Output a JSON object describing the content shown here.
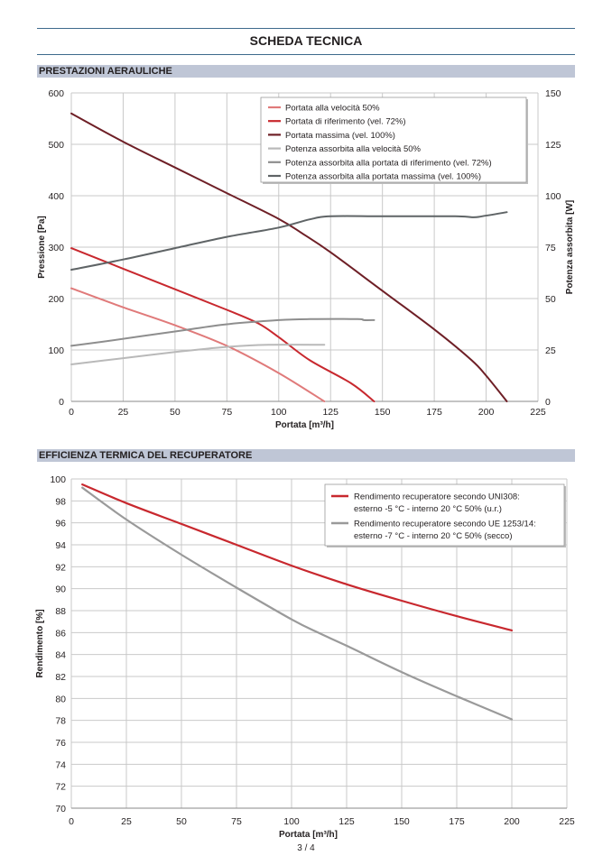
{
  "header": {
    "title": "SCHEDA TECNICA"
  },
  "sections": [
    {
      "title": "PRESTAZIONI AERAULICHE"
    },
    {
      "title": "EFFICIENZA TERMICA DEL RECUPERATORE"
    }
  ],
  "footer": {
    "page": "3 / 4"
  },
  "chart_data": [
    {
      "type": "line",
      "title": "PRESTAZIONI AERAULICHE",
      "xlabel": "Portata [m³/h]",
      "ylabel": "Pressione [Pa]",
      "y2label": "Potenza assorbita [W]",
      "xlim": [
        0,
        225
      ],
      "ylim": [
        0,
        600
      ],
      "y2lim": [
        0,
        150
      ],
      "xticks": [
        "0",
        "25",
        "50",
        "75",
        "100",
        "125",
        "150",
        "175",
        "200",
        "225"
      ],
      "yticks": [
        "0",
        "100",
        "200",
        "300",
        "400",
        "500",
        "600"
      ],
      "y2ticks": [
        "0",
        "25",
        "50",
        "75",
        "100",
        "125",
        "150"
      ],
      "grid": true,
      "legend_position": "top-right",
      "series": [
        {
          "name": "Portata alla velocità 50%",
          "axis": "left",
          "color": "#e07a7a",
          "x": [
            0,
            25,
            50,
            75,
            100,
            122
          ],
          "y": [
            220,
            183,
            148,
            108,
            55,
            0
          ]
        },
        {
          "name": "Portata di riferimento (vel. 72%)",
          "axis": "left",
          "color": "#c8282e",
          "x": [
            0,
            25,
            50,
            75,
            90,
            100,
            115,
            135,
            146
          ],
          "y": [
            298,
            258,
            218,
            178,
            152,
            125,
            80,
            35,
            0
          ]
        },
        {
          "name": "Portata massima (vel. 100%)",
          "axis": "left",
          "color": "#6e1f26",
          "x": [
            0,
            25,
            50,
            75,
            100,
            112,
            125,
            150,
            175,
            193,
            200,
            210
          ],
          "y": [
            560,
            505,
            455,
            405,
            355,
            325,
            290,
            215,
            140,
            80,
            50,
            0
          ]
        },
        {
          "name": "Potenza assorbita alla velocità 50%",
          "axis": "right",
          "color": "#b9b9b9",
          "x": [
            0,
            25,
            50,
            75,
            95,
            122
          ],
          "y": [
            18,
            21,
            24,
            26.5,
            27.5,
            27.5
          ]
        },
        {
          "name": "Potenza assorbita alla portata di riferimento (vel. 72%)",
          "axis": "right",
          "color": "#8e8e8e",
          "x": [
            0,
            15,
            50,
            75,
            100,
            115,
            138,
            141,
            146
          ],
          "y": [
            27,
            29,
            34,
            37.5,
            39.5,
            40,
            40,
            39.5,
            39.5
          ]
        },
        {
          "name": "Potenza assorbita alla portata massima (vel. 100%)",
          "axis": "right",
          "color": "#5f6466",
          "x": [
            0,
            25,
            50,
            75,
            100,
            115,
            125,
            150,
            185,
            194,
            198,
            210
          ],
          "y": [
            64,
            69,
            74.5,
            80,
            84.5,
            88.5,
            90,
            90,
            90,
            89.5,
            90,
            92
          ]
        }
      ]
    },
    {
      "type": "line",
      "title": "EFFICIENZA TERMICA DEL RECUPERATORE",
      "xlabel": "Portata [m³/h]",
      "ylabel": "Rendimento [%]",
      "xlim": [
        0,
        225
      ],
      "ylim": [
        70,
        100
      ],
      "xticks": [
        "0",
        "25",
        "50",
        "75",
        "100",
        "125",
        "150",
        "175",
        "200",
        "225"
      ],
      "yticks": [
        "70",
        "72",
        "74",
        "76",
        "78",
        "80",
        "82",
        "84",
        "86",
        "88",
        "90",
        "92",
        "94",
        "96",
        "98",
        "100"
      ],
      "grid": true,
      "legend_position": "top-right",
      "series": [
        {
          "name": "Rendimento recuperatore secondo UNI308:",
          "name_line2": "esterno -5 °C - interno 20 °C 50% (u.r.)",
          "color": "#c8282e",
          "x": [
            5,
            25,
            50,
            75,
            100,
            125,
            150,
            175,
            200
          ],
          "y": [
            99.5,
            97.8,
            95.9,
            94.0,
            92.1,
            90.4,
            88.9,
            87.5,
            86.2
          ]
        },
        {
          "name": "Rendimento recuperatore secondo UE 1253/14:",
          "name_line2": "esterno -7 °C - interno 20 °C 50% (secco)",
          "color": "#9a9a9a",
          "x": [
            5,
            25,
            50,
            75,
            100,
            112,
            125,
            150,
            175,
            200
          ],
          "y": [
            99.2,
            96.3,
            93.1,
            90.1,
            87.2,
            86.0,
            84.8,
            82.4,
            80.2,
            78.1
          ]
        }
      ]
    }
  ]
}
